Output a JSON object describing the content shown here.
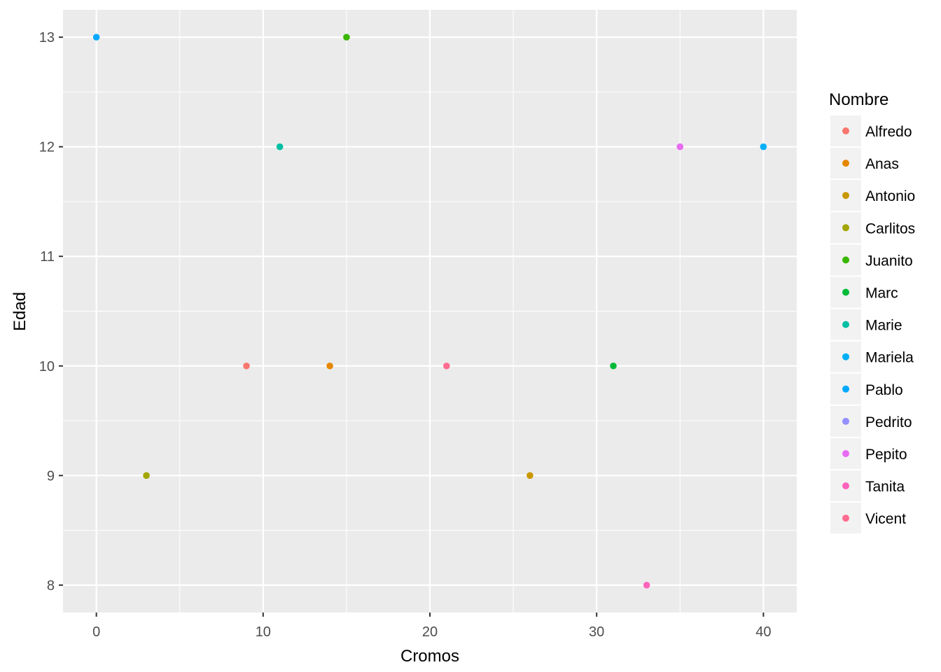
{
  "chart_data": {
    "type": "scatter",
    "title": "",
    "xlabel": "Cromos",
    "ylabel": "Edad",
    "xlim": [
      -2,
      42
    ],
    "ylim": [
      7.75,
      13.25
    ],
    "x_ticks": [
      0,
      10,
      20,
      30,
      40
    ],
    "y_ticks": [
      8,
      9,
      10,
      11,
      12,
      13
    ],
    "x_tick_labels": [
      "0",
      "10",
      "20",
      "30",
      "40"
    ],
    "y_tick_labels": [
      "8",
      "9",
      "10",
      "11",
      "12",
      "13"
    ],
    "grid": true,
    "legend": {
      "title": "Nombre",
      "position": "right"
    },
    "series": [
      {
        "name": "Alfredo",
        "color": "#F8766D",
        "points": [
          [
            9,
            10
          ]
        ]
      },
      {
        "name": "Anas",
        "color": "#E58700",
        "points": [
          [
            14,
            10
          ]
        ]
      },
      {
        "name": "Antonio",
        "color": "#C99800",
        "points": [
          [
            26,
            9
          ]
        ]
      },
      {
        "name": "Carlitos",
        "color": "#A3A500",
        "points": [
          [
            3,
            9
          ]
        ]
      },
      {
        "name": "Juanito",
        "color": "#39B600",
        "points": [
          [
            15,
            13
          ]
        ]
      },
      {
        "name": "Marc",
        "color": "#00BA38",
        "points": [
          [
            31,
            10
          ]
        ]
      },
      {
        "name": "Marie",
        "color": "#00BFA4",
        "points": [
          [
            11,
            12
          ]
        ]
      },
      {
        "name": "Mariela",
        "color": "#00B0F6",
        "points": [
          [
            40,
            12
          ]
        ]
      },
      {
        "name": "Pablo",
        "color": "#00A9FF",
        "points": [
          [
            0,
            13
          ]
        ]
      },
      {
        "name": "Pedrito",
        "color": "#9590FF",
        "points": []
      },
      {
        "name": "Pepito",
        "color": "#E76BF3",
        "points": [
          [
            35,
            12
          ]
        ]
      },
      {
        "name": "Tanita",
        "color": "#FF62BC",
        "points": [
          [
            33,
            8
          ]
        ]
      },
      {
        "name": "Vicent",
        "color": "#FF6C91",
        "points": [
          [
            21,
            10
          ]
        ]
      }
    ]
  }
}
